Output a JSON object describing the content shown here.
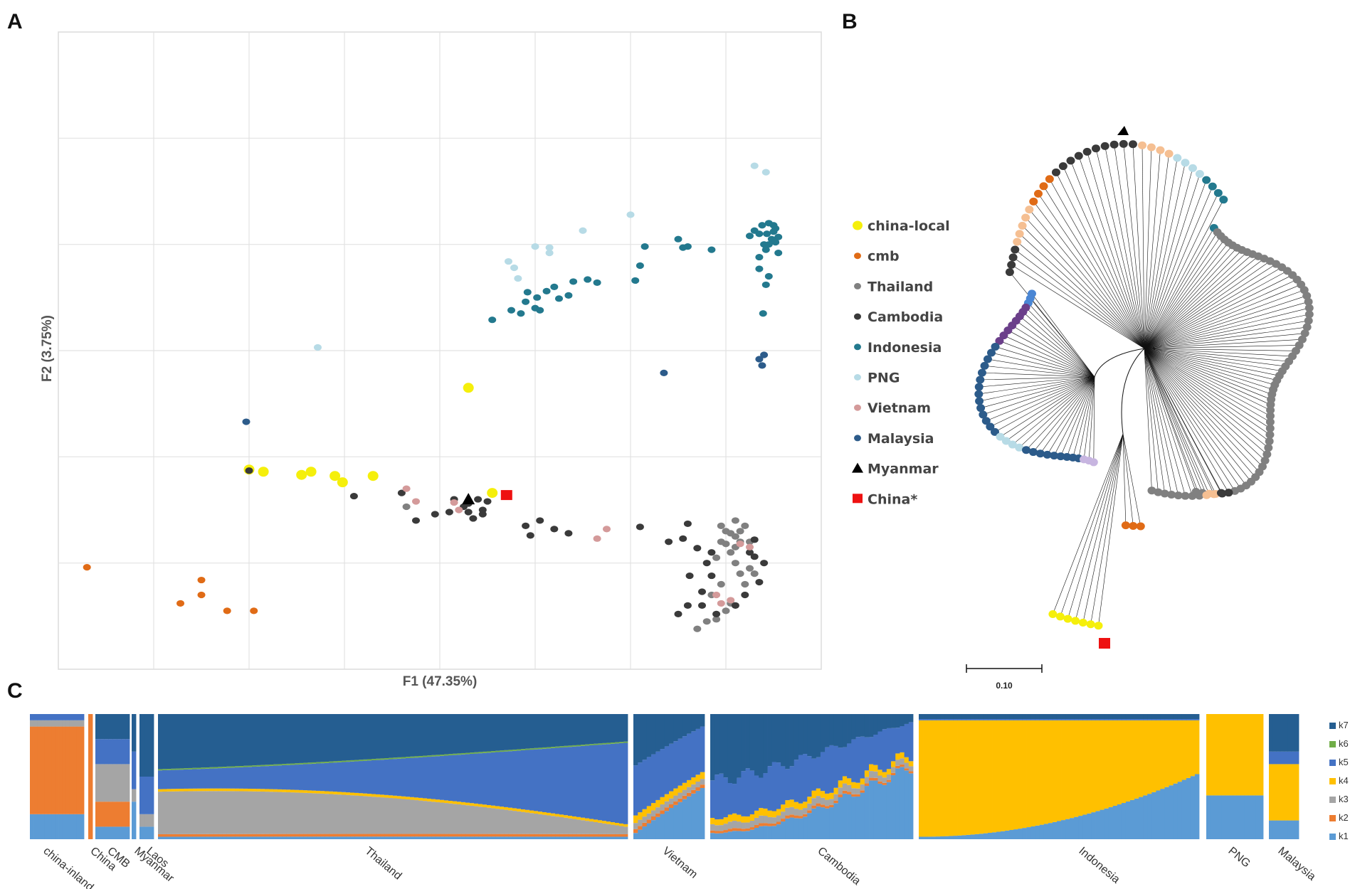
{
  "colors": {
    "china-local": "#f5ef0b",
    "cmb": "#e06b16",
    "Thailand": "#808080",
    "Cambodia": "#3a3a3a",
    "Indonesia": "#23798e",
    "PNG": "#b7dbe6",
    "Vietnam": "#d49a9a",
    "Malaysia": "#2c5b8a",
    "Myanmar": "#000000",
    "China*": "#ee1111",
    "peach": "#f5bf92",
    "purple": "#6b3f8a",
    "lightblue": "#4a86d4",
    "lavender": "#c7b5e0",
    "lightgreen": "#9ccb6b"
  },
  "panels": {
    "a": "A",
    "b": "B",
    "c": "C"
  },
  "chart_data": [
    {
      "panel": "A",
      "type": "scatter",
      "title": "",
      "xlabel": "F1 (47.35%)",
      "ylabel": "F2 (3.75%)",
      "xlim": [
        0,
        8
      ],
      "ylim": [
        0,
        6
      ],
      "grid": true,
      "series": [
        {
          "name": "china-local",
          "marker": "circle",
          "points": [
            [
              2,
              1.88
            ],
            [
              2.15,
              1.86
            ],
            [
              2.55,
              1.83
            ],
            [
              2.65,
              1.86
            ],
            [
              2.9,
              1.82
            ],
            [
              2.98,
              1.76
            ],
            [
              3.3,
              1.82
            ],
            [
              4.3,
              2.65
            ],
            [
              4.55,
              1.66
            ]
          ]
        },
        {
          "name": "cmb",
          "marker": "circle",
          "points": [
            [
              0.3,
              0.96
            ],
            [
              1.28,
              0.62
            ],
            [
              1.5,
              0.7
            ],
            [
              1.5,
              0.84
            ],
            [
              1.77,
              0.55
            ],
            [
              2.05,
              0.55
            ]
          ]
        },
        {
          "name": "Thailand",
          "marker": "circle",
          "points": [
            [
              3.65,
              1.53
            ],
            [
              6.7,
              0.38
            ],
            [
              6.8,
              0.45
            ],
            [
              6.9,
              0.47
            ],
            [
              7.0,
              0.55
            ],
            [
              7.05,
              0.62
            ],
            [
              6.85,
              0.7
            ],
            [
              6.95,
              0.8
            ],
            [
              7.2,
              0.8
            ],
            [
              6.95,
              1.2
            ],
            [
              7.1,
              1.25
            ],
            [
              6.9,
              1.05
            ],
            [
              7.0,
              1.3
            ],
            [
              7.1,
              1.4
            ],
            [
              7.2,
              1.35
            ],
            [
              7.15,
              1.2
            ],
            [
              6.95,
              1.35
            ],
            [
              7.05,
              1.1
            ],
            [
              7.1,
              1.0
            ],
            [
              7.25,
              0.95
            ],
            [
              7.3,
              0.9
            ],
            [
              7.15,
              0.9
            ],
            [
              7.0,
              1.18
            ],
            [
              7.25,
              1.2
            ],
            [
              7.05,
              1.28
            ],
            [
              7.15,
              1.3
            ],
            [
              7.1,
              1.15
            ]
          ]
        },
        {
          "name": "Cambodia",
          "marker": "circle",
          "points": [
            [
              2.0,
              1.87
            ],
            [
              3.1,
              1.63
            ],
            [
              3.6,
              1.66
            ],
            [
              3.75,
              1.4
            ],
            [
              3.95,
              1.46
            ],
            [
              4.1,
              1.48
            ],
            [
              4.3,
              1.48
            ],
            [
              4.15,
              1.6
            ],
            [
              4.45,
              1.5
            ],
            [
              4.5,
              1.58
            ],
            [
              4.35,
              1.42
            ],
            [
              4.25,
              1.53
            ],
            [
              4.4,
              1.6
            ],
            [
              4.3,
              1.56
            ],
            [
              4.45,
              1.46
            ],
            [
              4.9,
              1.35
            ],
            [
              5.05,
              1.4
            ],
            [
              5.2,
              1.32
            ],
            [
              4.95,
              1.26
            ],
            [
              5.35,
              1.28
            ],
            [
              6.1,
              1.34
            ],
            [
              6.4,
              1.2
            ],
            [
              6.55,
              1.23
            ],
            [
              6.6,
              1.37
            ],
            [
              6.7,
              1.14
            ],
            [
              6.8,
              1.0
            ],
            [
              6.85,
              0.88
            ],
            [
              6.75,
              0.73
            ],
            [
              6.6,
              0.6
            ],
            [
              6.5,
              0.52
            ],
            [
              6.75,
              0.6
            ],
            [
              6.9,
              0.52
            ],
            [
              7.3,
              1.06
            ],
            [
              7.2,
              0.7
            ],
            [
              7.35,
              0.82
            ],
            [
              7.4,
              1.0
            ],
            [
              7.25,
              1.1
            ],
            [
              7.3,
              1.22
            ],
            [
              6.62,
              0.88
            ],
            [
              6.85,
              1.1
            ],
            [
              7.1,
              0.6
            ]
          ]
        },
        {
          "name": "Indonesia",
          "marker": "circle",
          "points": [
            [
              4.55,
              3.29
            ],
            [
              4.75,
              3.38
            ],
            [
              4.9,
              3.46
            ],
            [
              5.0,
              3.4
            ],
            [
              5.05,
              3.38
            ],
            [
              4.92,
              3.55
            ],
            [
              5.02,
              3.5
            ],
            [
              5.12,
              3.56
            ],
            [
              5.2,
              3.6
            ],
            [
              5.4,
              3.65
            ],
            [
              5.55,
              3.67
            ],
            [
              5.65,
              3.64
            ],
            [
              6.05,
              3.66
            ],
            [
              6.1,
              3.8
            ],
            [
              6.15,
              3.98
            ],
            [
              6.5,
              4.05
            ],
            [
              6.6,
              3.98
            ],
            [
              6.85,
              3.95
            ],
            [
              7.25,
              4.08
            ],
            [
              7.3,
              4.13
            ],
            [
              7.35,
              4.1
            ],
            [
              7.4,
              4.0
            ],
            [
              7.45,
              4.2
            ],
            [
              7.5,
              4.12
            ],
            [
              7.55,
              4.07
            ],
            [
              7.35,
              3.88
            ],
            [
              7.42,
              3.95
            ],
            [
              7.48,
              4.05
            ],
            [
              7.38,
              4.18
            ],
            [
              7.43,
              4.1
            ],
            [
              7.52,
              4.15
            ],
            [
              7.45,
              4.0
            ],
            [
              7.35,
              3.77
            ],
            [
              7.55,
              3.92
            ],
            [
              6.55,
              3.97
            ],
            [
              5.25,
              3.49
            ],
            [
              5.35,
              3.52
            ],
            [
              4.85,
              3.35
            ],
            [
              7.5,
              4.18
            ],
            [
              7.52,
              4.02
            ],
            [
              7.45,
              3.7
            ],
            [
              7.42,
              3.62
            ],
            [
              7.39,
              3.35
            ]
          ]
        },
        {
          "name": "PNG",
          "marker": "circle",
          "points": [
            [
              2.72,
              3.03
            ],
            [
              4.72,
              3.84
            ],
            [
              4.78,
              3.78
            ],
            [
              4.82,
              3.68
            ],
            [
              5.0,
              3.98
            ],
            [
              5.15,
              3.97
            ],
            [
              5.5,
              4.13
            ],
            [
              6.0,
              4.28
            ],
            [
              7.3,
              4.74
            ],
            [
              7.42,
              4.68
            ],
            [
              5.15,
              3.92
            ]
          ]
        },
        {
          "name": "Vietnam",
          "marker": "circle",
          "points": [
            [
              3.65,
              1.7
            ],
            [
              3.75,
              1.58
            ],
            [
              4.15,
              1.57
            ],
            [
              4.2,
              1.5
            ],
            [
              5.65,
              1.23
            ],
            [
              5.75,
              1.32
            ],
            [
              6.9,
              0.7
            ],
            [
              6.95,
              0.62
            ],
            [
              7.05,
              0.65
            ],
            [
              7.15,
              1.18
            ],
            [
              7.25,
              1.15
            ]
          ]
        },
        {
          "name": "Malaysia",
          "marker": "circle",
          "points": [
            [
              1.97,
              2.33
            ],
            [
              6.35,
              2.79
            ],
            [
              7.35,
              2.92
            ],
            [
              7.4,
              2.96
            ],
            [
              7.38,
              2.86
            ]
          ]
        },
        {
          "name": "Myanmar",
          "marker": "triangle",
          "points": [
            [
              4.3,
              1.6
            ]
          ]
        },
        {
          "name": "China*",
          "marker": "square",
          "points": [
            [
              4.7,
              1.64
            ]
          ]
        }
      ]
    },
    {
      "panel": "B",
      "type": "other",
      "description_legend": [
        "china-local",
        "cmb",
        "Thailand",
        "Cambodia",
        "Indonesia",
        "PNG",
        "Vietnam",
        "Malaysia",
        "Myanmar",
        "China*"
      ],
      "scale_bar": "0.10"
    },
    {
      "panel": "C",
      "type": "bar",
      "stacked": true,
      "legend": [
        "k7",
        "k6",
        "k5",
        "k4",
        "k3",
        "k2",
        "k1"
      ],
      "groups": [
        "china-inland",
        "China",
        "CMB",
        "Myanmar",
        "Laos",
        "Thailand",
        "Vietnam",
        "Cambodia",
        "Indonesia",
        "PNG",
        "Malaysia"
      ],
      "group_sample_counts": [
        15,
        1,
        8,
        1,
        3,
        110,
        16,
        46,
        65,
        15,
        8
      ],
      "group_profiles": {
        "china-inland": {
          "k1": 0.2,
          "k2": 0.7,
          "k3": 0.05,
          "k4": 0.0,
          "k5": 0.05,
          "k6": 0.0,
          "k7": 0.0
        },
        "China": {
          "k1": 0.0,
          "k2": 1.0,
          "k3": 0.0,
          "k4": 0.0,
          "k5": 0.0,
          "k6": 0.0,
          "k7": 0.0
        },
        "CMB": {
          "k1": 0.1,
          "k2": 0.2,
          "k3": 0.3,
          "k4": 0.0,
          "k5": 0.2,
          "k6": 0.0,
          "k7": 0.2
        },
        "Myanmar": {
          "k1": 0.3,
          "k2": 0.0,
          "k3": 0.1,
          "k4": 0.0,
          "k5": 0.3,
          "k6": 0.0,
          "k7": 0.3
        },
        "Laos": {
          "k1": 0.1,
          "k2": 0.0,
          "k3": 0.1,
          "k4": 0.0,
          "k5": 0.3,
          "k6": 0.0,
          "k7": 0.5
        },
        "Thailand": {
          "k1": 0.02,
          "k2": 0.02,
          "k3": 0.3,
          "k4": 0.02,
          "k5": 0.22,
          "k6": 0.01,
          "k7": 0.41
        },
        "Vietnam": {
          "k1": 0.15,
          "k2": 0.03,
          "k3": 0.05,
          "k4": 0.05,
          "k5": 0.37,
          "k6": 0.0,
          "k7": 0.35
        },
        "Cambodia": {
          "k1": 0.25,
          "k2": 0.02,
          "k3": 0.05,
          "k4": 0.05,
          "k5": 0.3,
          "k6": 0.0,
          "k7": 0.33
        },
        "Indonesia": {
          "k1": 0.15,
          "k2": 0.0,
          "k3": 0.0,
          "k4": 0.8,
          "k5": 0.02,
          "k6": 0.0,
          "k7": 0.03
        },
        "PNG": {
          "k1": 0.35,
          "k2": 0.0,
          "k3": 0.0,
          "k4": 0.65,
          "k5": 0.0,
          "k6": 0.0,
          "k7": 0.0
        },
        "Malaysia": {
          "k1": 0.15,
          "k2": 0.0,
          "k3": 0.0,
          "k4": 0.45,
          "k5": 0.1,
          "k6": 0.0,
          "k7": 0.3
        }
      }
    }
  ]
}
